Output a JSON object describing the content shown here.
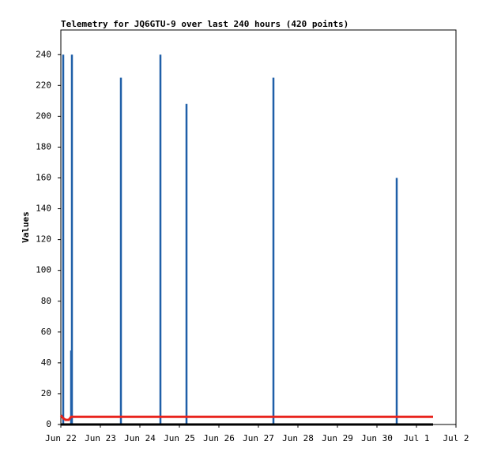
{
  "chart_data": {
    "type": "line",
    "title": "Telemetry for JQ6GTU-9 over last 240 hours (420 points)",
    "y_label": "Values",
    "xlim": [
      0,
      10
    ],
    "xticks": [
      {
        "value": 0,
        "label": "Jun 22"
      },
      {
        "value": 1,
        "label": "Jun 23"
      },
      {
        "value": 2,
        "label": "Jun 24"
      },
      {
        "value": 3,
        "label": "Jun 25"
      },
      {
        "value": 4,
        "label": "Jun 26"
      },
      {
        "value": 5,
        "label": "Jun 27"
      },
      {
        "value": 6,
        "label": "Jun 28"
      },
      {
        "value": 7,
        "label": "Jun 29"
      },
      {
        "value": 8,
        "label": "Jun 30"
      },
      {
        "value": 9,
        "label": "Jul 1"
      },
      {
        "value": 10,
        "label": "Jul 2"
      }
    ],
    "ylim": [
      0,
      256
    ],
    "yticks": [
      0,
      20,
      40,
      60,
      80,
      100,
      120,
      140,
      160,
      180,
      200,
      220,
      240
    ],
    "series": [
      {
        "color": "#1f5fa8",
        "style": "impulse",
        "x": [
          0.06,
          0.26,
          0.28,
          1.52,
          2.52,
          3.18,
          5.38,
          8.5
        ],
        "values": [
          240,
          48,
          240,
          225,
          240,
          208,
          225,
          160
        ]
      },
      {
        "color": "#000000",
        "style": "line",
        "x": [
          0,
          9.42
        ],
        "values": [
          0,
          0
        ]
      },
      {
        "color": "#e8231c",
        "style": "line",
        "x": [
          0,
          0.06,
          0.12,
          0.2,
          0.26,
          9.42
        ],
        "values": [
          6,
          4,
          3,
          3,
          5,
          5
        ]
      }
    ]
  }
}
